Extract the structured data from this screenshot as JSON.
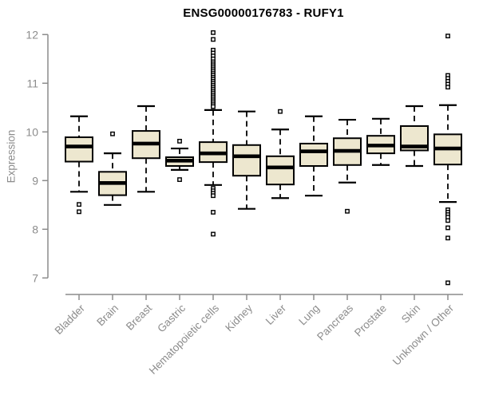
{
  "title": "ENSG00000176783 - RUFY1",
  "chart_data": {
    "type": "boxplot",
    "title": "ENSG00000176783 - RUFY1",
    "xlabel": "",
    "ylabel": "Expression",
    "ylim": [
      7,
      12
    ],
    "yticks": [
      7,
      8,
      9,
      10,
      11,
      12
    ],
    "grid": false,
    "legend": "none",
    "categories": [
      "Bladder",
      "Brain",
      "Breast",
      "Gastric",
      "Hematopoietic cells",
      "Kidney",
      "Liver",
      "Lung",
      "Pancreas",
      "Prostate",
      "Skin",
      "Unknown / Other"
    ],
    "series": [
      {
        "name": "Bladder",
        "low": 8.77,
        "q1": 9.39,
        "median": 9.7,
        "q3": 9.89,
        "high": 10.32,
        "outliers": [
          8.51,
          8.36
        ]
      },
      {
        "name": "Brain",
        "low": 8.5,
        "q1": 8.7,
        "median": 8.95,
        "q3": 9.18,
        "high": 9.56,
        "outliers": [
          9.96
        ]
      },
      {
        "name": "Breast",
        "low": 8.77,
        "q1": 9.46,
        "median": 9.76,
        "q3": 10.02,
        "high": 10.53,
        "outliers": []
      },
      {
        "name": "Gastric",
        "low": 9.22,
        "q1": 9.3,
        "median": 9.41,
        "q3": 9.48,
        "high": 9.66,
        "outliers": [
          9.81,
          9.02
        ]
      },
      {
        "name": "Hematopoietic cells",
        "low": 8.91,
        "q1": 9.38,
        "median": 9.56,
        "q3": 9.79,
        "high": 10.45,
        "outliers": [
          12.04,
          11.9,
          11.68,
          11.62,
          11.56,
          11.5,
          11.44,
          11.4,
          11.36,
          11.32,
          11.28,
          11.24,
          11.2,
          11.16,
          11.12,
          11.08,
          11.04,
          11.0,
          10.96,
          10.92,
          10.88,
          10.84,
          10.8,
          10.76,
          10.72,
          10.68,
          10.64,
          10.6,
          10.56,
          10.52,
          8.84,
          8.79,
          8.74,
          8.69,
          8.35,
          7.9
        ]
      },
      {
        "name": "Kidney",
        "low": 8.42,
        "q1": 9.1,
        "median": 9.5,
        "q3": 9.73,
        "high": 10.42,
        "outliers": []
      },
      {
        "name": "Liver",
        "low": 8.64,
        "q1": 8.92,
        "median": 9.27,
        "q3": 9.5,
        "high": 10.05,
        "outliers": [
          10.42
        ]
      },
      {
        "name": "Lung",
        "low": 8.69,
        "q1": 9.3,
        "median": 9.6,
        "q3": 9.76,
        "high": 10.32,
        "outliers": []
      },
      {
        "name": "Pancreas",
        "low": 8.96,
        "q1": 9.32,
        "median": 9.61,
        "q3": 9.87,
        "high": 10.25,
        "outliers": [
          8.37
        ]
      },
      {
        "name": "Prostate",
        "low": 9.32,
        "q1": 9.56,
        "median": 9.72,
        "q3": 9.92,
        "high": 10.27,
        "outliers": []
      },
      {
        "name": "Skin",
        "low": 9.3,
        "q1": 9.62,
        "median": 9.7,
        "q3": 10.12,
        "high": 10.53,
        "outliers": []
      },
      {
        "name": "Unknown / Other",
        "low": 8.56,
        "q1": 9.33,
        "median": 9.66,
        "q3": 9.95,
        "high": 10.55,
        "outliers": [
          11.97,
          11.16,
          11.1,
          11.04,
          10.98,
          10.92,
          8.4,
          8.35,
          8.3,
          8.25,
          8.18,
          8.03,
          7.82,
          6.9
        ]
      }
    ],
    "colors": {
      "box_fill": "#EDE7CF",
      "box_border": "#000000",
      "median": "#000000",
      "whisker": "#000000",
      "axis": "#8c8c8c",
      "tick_label": "#8c8c8c",
      "title": "#000000",
      "background": "#ffffff"
    }
  }
}
